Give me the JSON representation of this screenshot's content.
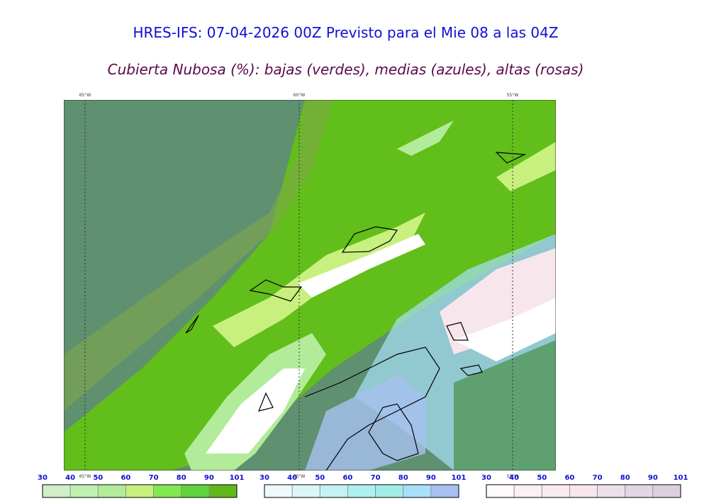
{
  "header": {
    "title": "HRES-IFS: 07-04-2026 00Z Previsto para el Mie 08 a las 04Z",
    "subtitle": "Cubierta Nubosa (%): bajas (verdes), medias (azules), altas (rosas)"
  },
  "map": {
    "longitude_labels": [
      "65°W",
      "60°W",
      "55°W"
    ]
  },
  "colorbars": [
    {
      "ticks": [
        30,
        40,
        50,
        60,
        70,
        80,
        90,
        101
      ],
      "colors": [
        "#cfeec9",
        "#c2f0b2",
        "#b2ec9a",
        "#c8f07e",
        "#82e852",
        "#5fd23e",
        "#62b81a"
      ]
    },
    {
      "ticks": [
        30,
        40,
        50,
        60,
        70,
        80,
        90,
        101
      ],
      "colors": [
        "#eef9fc",
        "#dcf5f8",
        "#c4f2f4",
        "#aef0f0",
        "#a2ece6",
        "#a8e0f8",
        "#a8c0f0"
      ]
    },
    {
      "ticks": [
        30,
        40,
        50,
        60,
        70,
        80,
        90,
        101
      ],
      "colors": [
        "#fefafa",
        "#fcf0f4",
        "#f9ebf0",
        "#f7e6ec",
        "#eee0ea",
        "#e4d5e4",
        "#dcd0e0"
      ]
    }
  ]
}
